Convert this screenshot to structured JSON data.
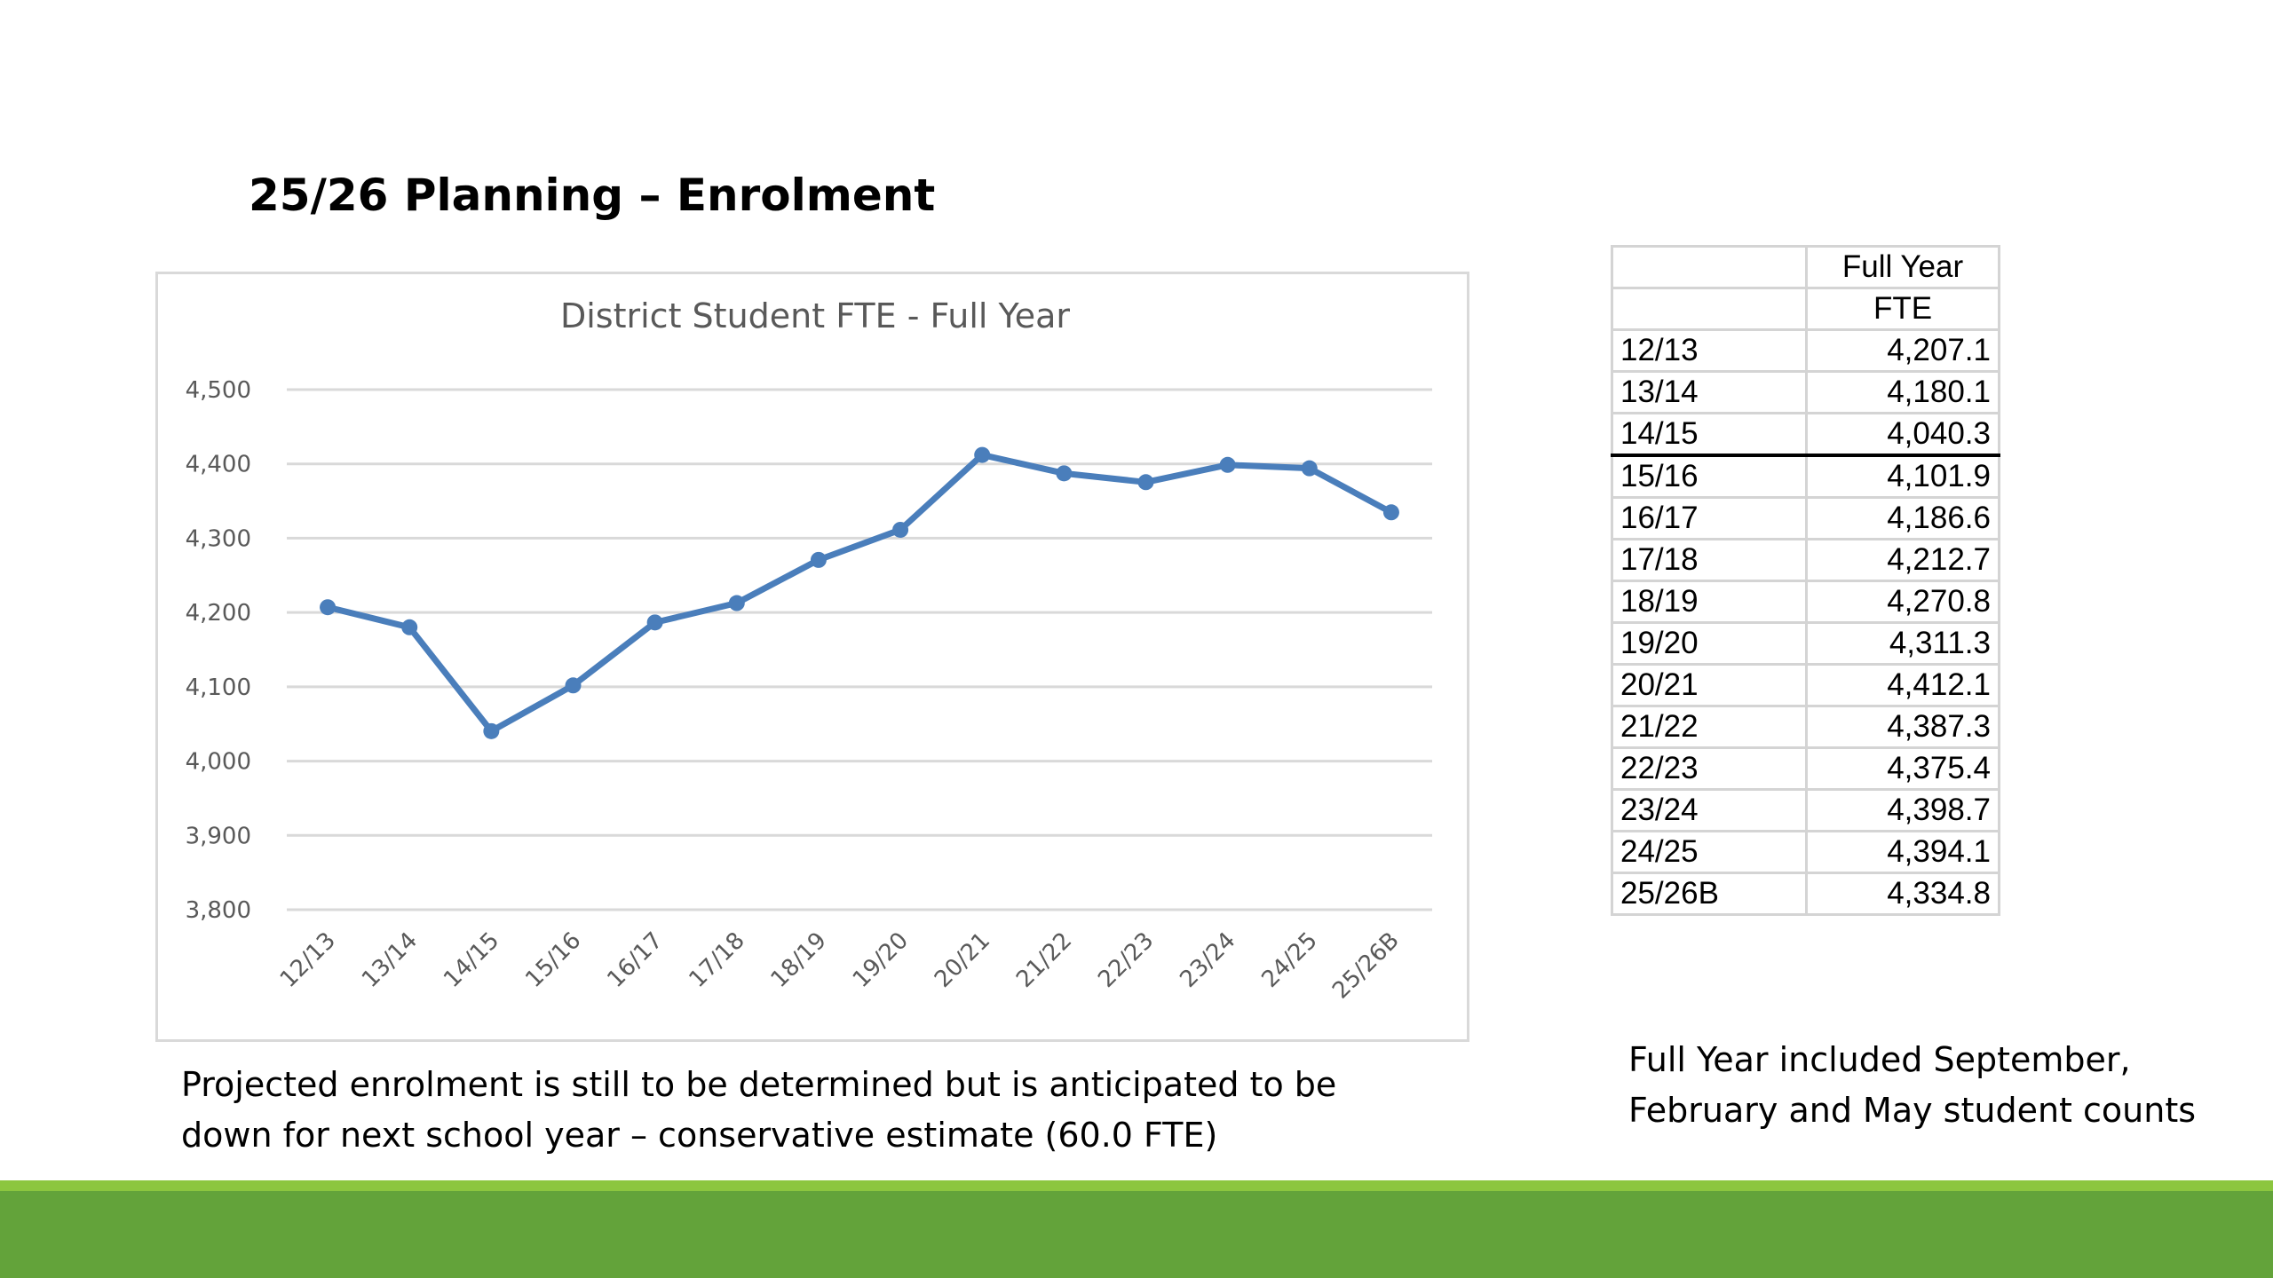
{
  "slide": {
    "title": "25/26 Planning – Enrolment",
    "note_left_line1": "Projected enrolment is still to be determined but is anticipated to be",
    "note_left_line2": "down for next school year – conservative estimate (60.0 FTE)",
    "note_right_line1": "Full Year included September,",
    "note_right_line2": "February and May student counts"
  },
  "colors": {
    "series": "#4a7ebb",
    "gridline": "#d9d9d9",
    "footer": "#63a33a",
    "footer_highlight": "#8cc63f"
  },
  "chart_data": {
    "type": "line",
    "title": "District Student FTE - Full Year",
    "xlabel": "",
    "ylabel": "",
    "categories": [
      "12/13",
      "13/14",
      "14/15",
      "15/16",
      "16/17",
      "17/18",
      "18/19",
      "19/20",
      "20/21",
      "21/22",
      "22/23",
      "23/24",
      "24/25",
      "25/26B"
    ],
    "series": [
      {
        "values": [
          4207.1,
          4180.1,
          4040.3,
          4101.9,
          4186.6,
          4212.7,
          4270.8,
          4311.3,
          4412.1,
          4387.3,
          4375.4,
          4398.7,
          4394.1,
          4334.8
        ]
      }
    ],
    "ylim": [
      3800,
      4500
    ],
    "yticks": [
      3800,
      3900,
      4000,
      4100,
      4200,
      4300,
      4400,
      4500
    ],
    "ytick_labels": [
      "3,800",
      "3,900",
      "4,000",
      "4,100",
      "4,200",
      "4,300",
      "4,400",
      "4,500"
    ],
    "grid": true,
    "legend": "none",
    "markers": true
  },
  "table": {
    "header_line1": "Full Year",
    "header_line2": "FTE",
    "rows": [
      {
        "year": "12/13",
        "fte": "4,207.1"
      },
      {
        "year": "13/14",
        "fte": "4,180.1"
      },
      {
        "year": "14/15",
        "fte": "4,040.3"
      },
      {
        "year": "15/16",
        "fte": "4,101.9"
      },
      {
        "year": "16/17",
        "fte": "4,186.6"
      },
      {
        "year": "17/18",
        "fte": "4,212.7"
      },
      {
        "year": "18/19",
        "fte": "4,270.8"
      },
      {
        "year": "19/20",
        "fte": "4,311.3"
      },
      {
        "year": "20/21",
        "fte": "4,412.1"
      },
      {
        "year": "21/22",
        "fte": "4,387.3"
      },
      {
        "year": "22/23",
        "fte": "4,375.4"
      },
      {
        "year": "23/24",
        "fte": "4,398.7"
      },
      {
        "year": "24/25",
        "fte": "4,394.1"
      },
      {
        "year": "25/26B",
        "fte": "4,334.8"
      }
    ]
  }
}
